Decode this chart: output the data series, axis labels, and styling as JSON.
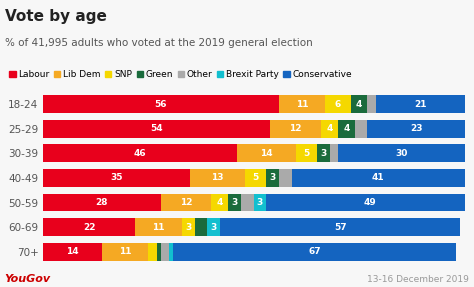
{
  "title": "Vote by age",
  "subtitle": "% of 41,995 adults who voted at the 2019 general election",
  "footer_left": "YouGov",
  "footer_right": "13-16 December 2019",
  "age_groups": [
    "18-24",
    "25-29",
    "30-39",
    "40-49",
    "50-59",
    "60-69",
    "70+"
  ],
  "parties": [
    "Labour",
    "Lib Dem",
    "SNP",
    "Green",
    "Other",
    "Brexit Party",
    "Conservative"
  ],
  "colors": [
    "#e8001c",
    "#f5a923",
    "#f5d800",
    "#1a6b3c",
    "#aaaaaa",
    "#12bfcf",
    "#1464c0"
  ],
  "data": {
    "18-24": [
      56,
      11,
      6,
      4,
      2,
      0,
      21
    ],
    "25-29": [
      54,
      12,
      4,
      4,
      3,
      0,
      23
    ],
    "30-39": [
      46,
      14,
      5,
      3,
      2,
      0,
      30
    ],
    "40-49": [
      35,
      13,
      5,
      3,
      3,
      0,
      41
    ],
    "50-59": [
      28,
      12,
      4,
      3,
      3,
      3,
      49
    ],
    "60-69": [
      22,
      11,
      3,
      3,
      0,
      3,
      57
    ],
    "70+": [
      14,
      11,
      2,
      1,
      2,
      1,
      67
    ]
  },
  "show_labels": {
    "18-24": [
      true,
      true,
      true,
      true,
      false,
      false,
      true
    ],
    "25-29": [
      true,
      true,
      true,
      true,
      false,
      false,
      true
    ],
    "30-39": [
      true,
      true,
      true,
      true,
      false,
      false,
      true
    ],
    "40-49": [
      true,
      true,
      true,
      true,
      false,
      false,
      true
    ],
    "50-59": [
      true,
      true,
      true,
      true,
      false,
      true,
      true
    ],
    "60-69": [
      true,
      true,
      true,
      false,
      false,
      true,
      true
    ],
    "70+": [
      true,
      true,
      false,
      false,
      false,
      false,
      true
    ]
  },
  "header_bg": "#e8e8f0",
  "chart_bg": "#f7f7f7",
  "title_fontsize": 11,
  "subtitle_fontsize": 7.5,
  "label_fontsize": 6.5,
  "ytick_fontsize": 7.5,
  "legend_fontsize": 6.5,
  "footer_left_color": "#cc0000",
  "footer_right_color": "#999999",
  "bar_height": 0.72
}
